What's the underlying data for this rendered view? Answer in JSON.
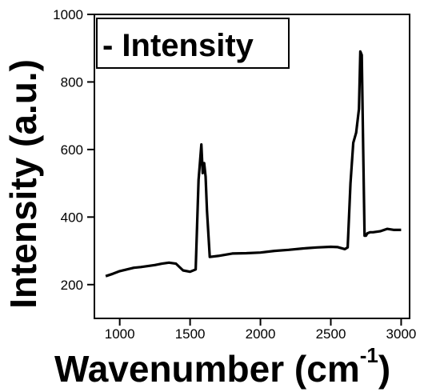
{
  "chart_data": {
    "type": "line",
    "xlabel": "Wavenumber (cm",
    "xlabel_superscript": "-1",
    "xlabel_close": ")",
    "ylabel": "Intensity (a.u.)",
    "xlim": [
      820,
      3060
    ],
    "ylim": [
      100,
      1000
    ],
    "x_ticks": [
      1000,
      1500,
      2000,
      2500,
      3000
    ],
    "y_ticks": [
      200,
      400,
      600,
      800,
      1000
    ],
    "grid": false,
    "legend_position": "top-left",
    "series": [
      {
        "name": "- Intensity",
        "color": "#000000",
        "x": [
          900,
          950,
          1000,
          1050,
          1100,
          1150,
          1200,
          1250,
          1300,
          1350,
          1400,
          1450,
          1500,
          1540,
          1560,
          1570,
          1580,
          1590,
          1600,
          1610,
          1620,
          1640,
          1700,
          1800,
          1900,
          2000,
          2100,
          2200,
          2300,
          2400,
          2500,
          2550,
          2600,
          2620,
          2640,
          2660,
          2680,
          2700,
          2710,
          2720,
          2730,
          2740,
          2750,
          2760,
          2780,
          2800,
          2850,
          2900,
          2950,
          3000
        ],
        "y": [
          225,
          232,
          240,
          245,
          250,
          252,
          255,
          258,
          262,
          265,
          262,
          242,
          238,
          245,
          510,
          560,
          615,
          530,
          560,
          520,
          420,
          282,
          285,
          292,
          293,
          295,
          300,
          303,
          307,
          310,
          312,
          311,
          305,
          310,
          500,
          620,
          650,
          720,
          890,
          880,
          600,
          345,
          345,
          352,
          355,
          355,
          358,
          365,
          362,
          362
        ]
      }
    ]
  }
}
